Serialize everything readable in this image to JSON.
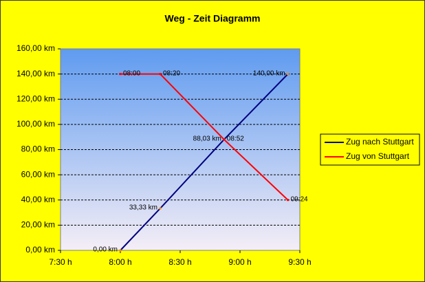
{
  "chart_data": {
    "type": "line",
    "title": "Weg - Zeit Diagramm",
    "series": [
      {
        "name": "Zug nach Stuttgart",
        "color": "#000080",
        "x": [
          480,
          500,
          532,
          564
        ],
        "values": [
          0,
          33.33,
          88.03,
          140
        ],
        "value_labels": [
          "0,00 km",
          "33,33 km",
          "88,03 km",
          "140,00 km"
        ]
      },
      {
        "name": "Zug von Stuttgart",
        "color": "#ff0000",
        "x": [
          480,
          500,
          532,
          564
        ],
        "values": [
          140,
          140,
          88.03,
          40
        ],
        "x_labels": [
          "08:00",
          "08:20",
          "08:52",
          "09:24"
        ]
      }
    ],
    "xlim": [
      450,
      570
    ],
    "xticks": [
      {
        "value": 450,
        "label": "7:30 h"
      },
      {
        "value": 480,
        "label": "8:00 h"
      },
      {
        "value": 510,
        "label": "8:30 h"
      },
      {
        "value": 540,
        "label": "9:00 h"
      },
      {
        "value": 570,
        "label": "9:30 h"
      }
    ],
    "ylim": [
      0,
      160
    ],
    "yticks": [
      {
        "value": 0,
        "label": "0,00 km"
      },
      {
        "value": 20,
        "label": "20,00 km"
      },
      {
        "value": 40,
        "label": "40,00 km"
      },
      {
        "value": 60,
        "label": "60,00 km"
      },
      {
        "value": 80,
        "label": "80,00 km"
      },
      {
        "value": 100,
        "label": "100,00 km"
      },
      {
        "value": 120,
        "label": "120,00 km"
      },
      {
        "value": 140,
        "label": "140,00 km"
      },
      {
        "value": 160,
        "label": "160,00 km"
      }
    ],
    "grid": true,
    "legend": "right"
  }
}
